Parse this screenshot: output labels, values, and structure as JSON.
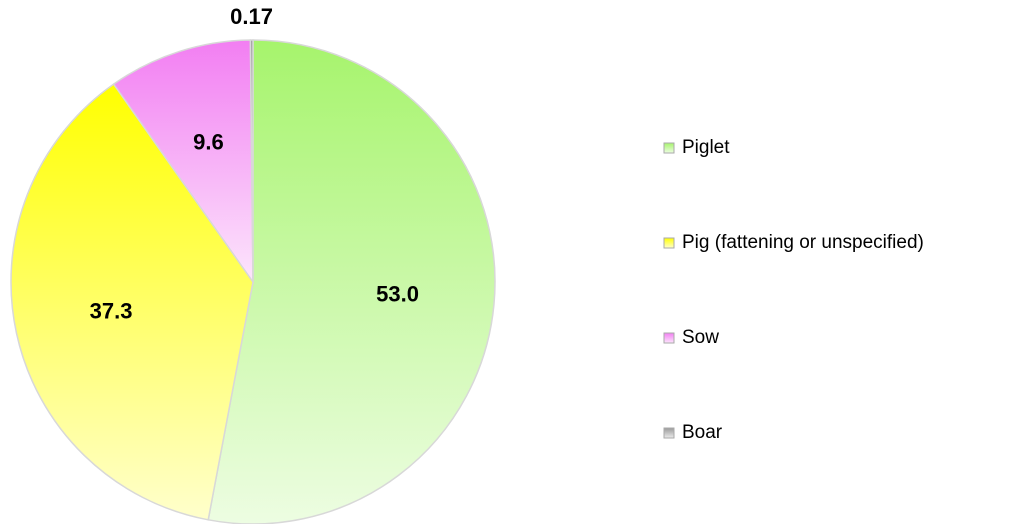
{
  "chart_data": {
    "type": "pie",
    "categories": [
      "Piglet",
      "Pig (fattening or unspecified)",
      "Sow",
      "Boar"
    ],
    "values": [
      53.0,
      37.3,
      9.6,
      0.17
    ],
    "value_labels": [
      "53.0",
      "37.3",
      "9.6",
      "0.17"
    ],
    "colors": [
      "#a6f46c",
      "#ffff00",
      "#f27ef2",
      "#9a9a9a"
    ],
    "legend": "right"
  }
}
